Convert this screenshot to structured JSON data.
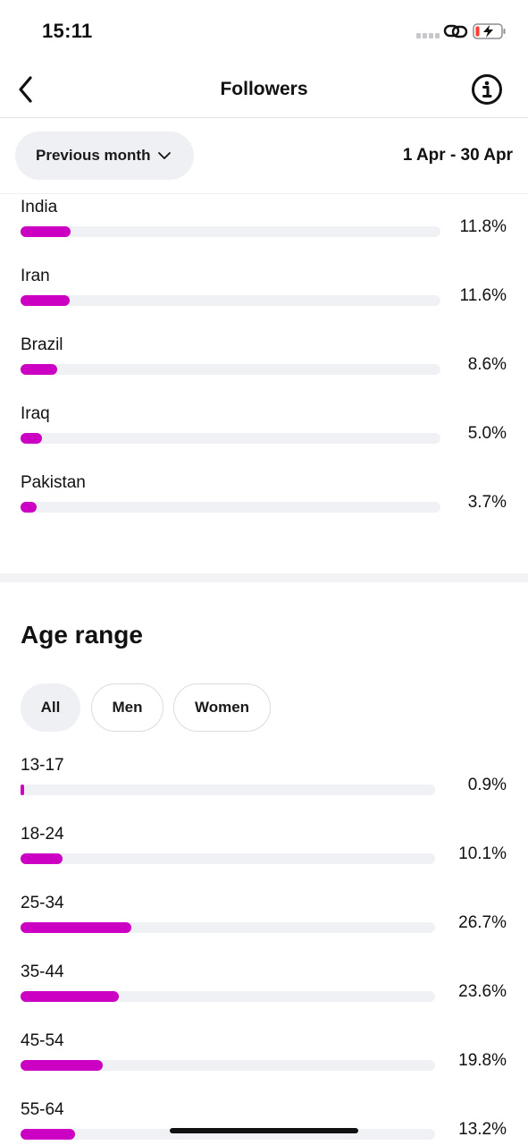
{
  "status_bar": {
    "time": "15:11"
  },
  "nav": {
    "title": "Followers"
  },
  "filter": {
    "period": "Previous month",
    "date_range": "1 Apr - 30 Apr"
  },
  "countries": [
    {
      "label": "India",
      "value": "11.8%",
      "fraction": 0.118
    },
    {
      "label": "Iran",
      "value": "11.6%",
      "fraction": 0.116
    },
    {
      "label": "Brazil",
      "value": "8.6%",
      "fraction": 0.086
    },
    {
      "label": "Iraq",
      "value": "5.0%",
      "fraction": 0.05
    },
    {
      "label": "Pakistan",
      "value": "3.7%",
      "fraction": 0.037
    }
  ],
  "age_section": {
    "heading": "Age range",
    "chips": [
      {
        "label": "All",
        "selected": true
      },
      {
        "label": "Men",
        "selected": false
      },
      {
        "label": "Women",
        "selected": false
      }
    ],
    "ranges": [
      {
        "label": "13-17",
        "value": "0.9%",
        "fraction": 0.009
      },
      {
        "label": "18-24",
        "value": "10.1%",
        "fraction": 0.101
      },
      {
        "label": "25-34",
        "value": "26.7%",
        "fraction": 0.267
      },
      {
        "label": "35-44",
        "value": "23.6%",
        "fraction": 0.236
      },
      {
        "label": "45-54",
        "value": "19.8%",
        "fraction": 0.198
      },
      {
        "label": "55-64",
        "value": "13.2%",
        "fraction": 0.132
      }
    ]
  },
  "colors": {
    "bar_fill": "#cc00c3",
    "bar_track": "#f0f1f4",
    "chip_bg": "#eff0f3"
  },
  "icons": {
    "back": "chevron-left-icon",
    "info": "info-icon",
    "dropdown": "chevron-down-icon"
  }
}
